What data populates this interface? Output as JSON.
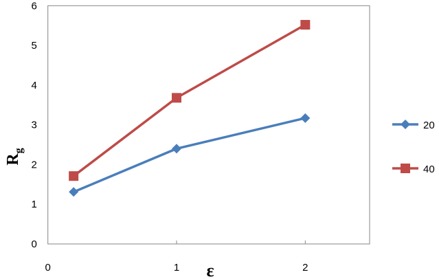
{
  "chart_data": {
    "type": "line",
    "title": "",
    "xlabel": "ε",
    "ylabel": "R",
    "ylabel_subscript": "g",
    "xlim": [
      0,
      2.5
    ],
    "ylim": [
      0,
      6
    ],
    "xticks": [
      "0",
      "1",
      "2"
    ],
    "xtick_values": [
      0,
      1,
      2
    ],
    "yticks": [
      "0",
      "1",
      "2",
      "3",
      "4",
      "5",
      "6"
    ],
    "grid": false,
    "legend_position": "right",
    "series": [
      {
        "name": "20",
        "color": "#4a7ebb",
        "marker": "diamond",
        "x": [
          0.2,
          1,
          2
        ],
        "y": [
          1.31,
          2.4,
          3.17
        ]
      },
      {
        "name": "40",
        "color": "#be4b48",
        "marker": "square",
        "x": [
          0.2,
          1,
          2
        ],
        "y": [
          1.71,
          3.68,
          5.52
        ]
      }
    ]
  }
}
